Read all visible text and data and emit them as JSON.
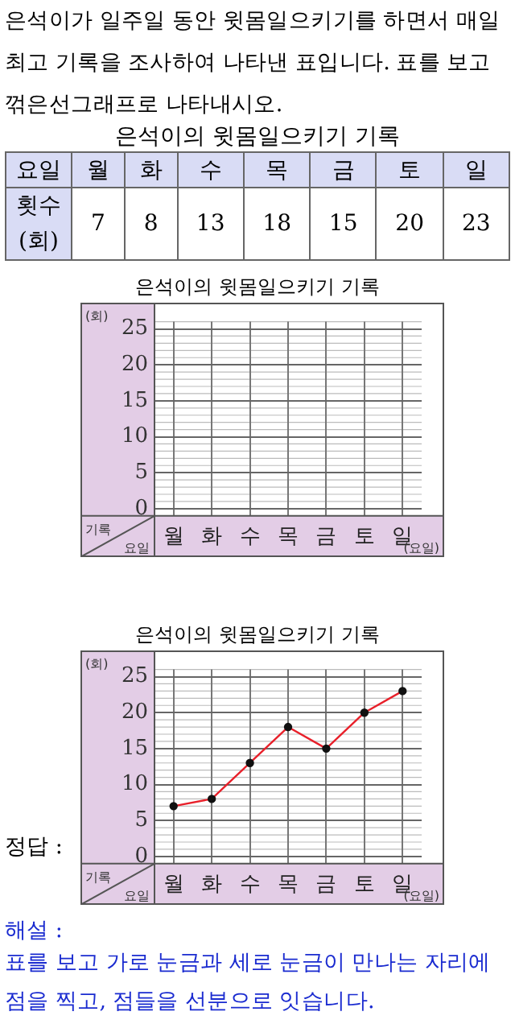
{
  "chart_data": [
    {
      "type": "other",
      "title": "은석이의 윗몸일으키기 기록",
      "xlabel": "요일",
      "ylabel": "횟수 (회)",
      "categories": [
        "월",
        "화",
        "수",
        "목",
        "금",
        "토",
        "일"
      ],
      "values": [
        7,
        8,
        13,
        18,
        15,
        20,
        23
      ],
      "data_labels": true,
      "annotations": [
        "은석이가 일주일 동안 윗몸일으키기를 하면서 매일 최고 기록을 조사하여 나타낸 표입니다. 표를 보고 꺾은선그래프로 나타내시오."
      ]
    },
    {
      "type": "line",
      "title": "은석이의 윗몸일으키기 기록",
      "xlabel": "요일",
      "ylabel": "(회)",
      "categories": [
        "월",
        "화",
        "수",
        "목",
        "금",
        "토",
        "일"
      ],
      "values": [
        null,
        null,
        null,
        null,
        null,
        null,
        null
      ],
      "ylim": [
        -1,
        26
      ],
      "yticks": [
        0,
        5,
        10,
        15,
        20,
        25
      ],
      "grid": true,
      "annotations": [
        "기록",
        "(요일)"
      ]
    },
    {
      "type": "line",
      "title": "은석이의 윗몸일으키기 기록",
      "xlabel": "요일",
      "ylabel": "(회)",
      "categories": [
        "월",
        "화",
        "수",
        "목",
        "금",
        "토",
        "일"
      ],
      "series": [
        {
          "color": "#e8202a",
          "values": [
            7,
            8,
            13,
            18,
            15,
            20,
            23
          ]
        }
      ],
      "ylim": [
        -1,
        26
      ],
      "yticks": [
        0,
        5,
        10,
        15,
        20,
        25
      ],
      "grid": true,
      "marker": "circle",
      "annotations": [
        "기록",
        "(요일)",
        "정답 :",
        "해설 :",
        "표를 보고 가로 눈금과 세로 눈금이 만나는 자리에 점을 찍고, 점들을 선분으로 잇습니다."
      ]
    }
  ]
}
